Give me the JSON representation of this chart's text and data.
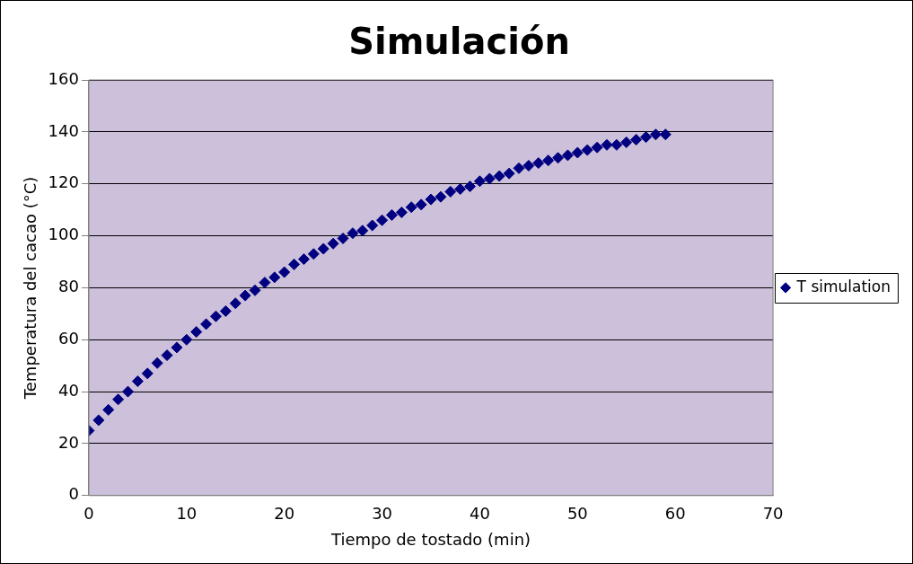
{
  "chart_data": {
    "type": "scatter",
    "title": "Simulación",
    "xlabel": "Tiempo de tostado (min)",
    "ylabel": "Temperatura del cacao (°C)",
    "x": [
      0,
      1,
      2,
      3,
      4,
      5,
      6,
      7,
      8,
      9,
      10,
      11,
      12,
      13,
      14,
      15,
      16,
      17,
      18,
      19,
      20,
      21,
      22,
      23,
      24,
      25,
      26,
      27,
      28,
      29,
      30,
      31,
      32,
      33,
      34,
      35,
      36,
      37,
      38,
      39,
      40,
      41,
      42,
      43,
      44,
      45,
      46,
      47,
      48,
      49,
      50,
      51,
      52,
      53,
      54,
      55,
      56,
      57,
      58,
      59
    ],
    "series": [
      {
        "name": "T simulation",
        "color": "#000080",
        "values": [
          25,
          29,
          33,
          37,
          40,
          44,
          47,
          51,
          54,
          57,
          60,
          63,
          66,
          69,
          71,
          74,
          77,
          79,
          82,
          84,
          86,
          89,
          91,
          93,
          95,
          97,
          99,
          101,
          102,
          104,
          106,
          108,
          109,
          111,
          112,
          114,
          115,
          117,
          118,
          119,
          121,
          122,
          123,
          124,
          126,
          127,
          128,
          129,
          130,
          131,
          132,
          133,
          134,
          135,
          135,
          136,
          137,
          138,
          139,
          139
        ]
      }
    ],
    "xlim": [
      0,
      70
    ],
    "xticks": [
      0,
      10,
      20,
      30,
      40,
      50,
      60,
      70
    ],
    "ylim": [
      0,
      160
    ],
    "yticks": [
      0,
      20,
      40,
      60,
      80,
      100,
      120,
      140,
      160
    ],
    "grid": "y",
    "legend": "right",
    "marker": "diamond"
  }
}
